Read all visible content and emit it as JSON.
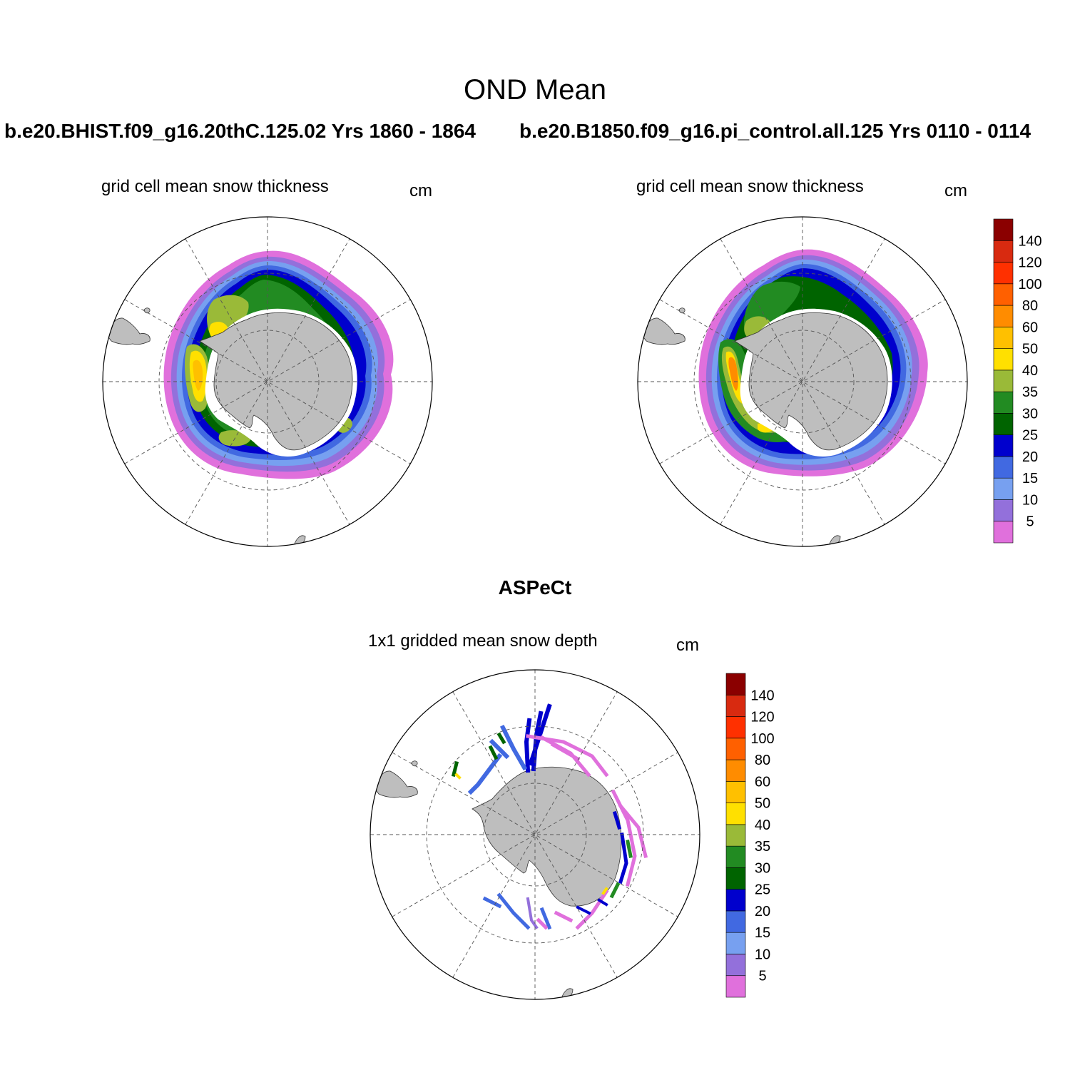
{
  "main_title": "OND Mean",
  "panels": [
    {
      "case_title": "b.e20.BHIST.f09_g16.20thC.125.02  Yrs 1860 - 1864",
      "subtitle": "grid cell mean snow thickness",
      "units": "cm"
    },
    {
      "case_title": "b.e20.B1850.f09_g16.pi_control.all.125  Yrs 0110 - 0114",
      "subtitle": "grid cell mean snow thickness",
      "units": "cm"
    }
  ],
  "observation": {
    "title": "ASPeCt",
    "subtitle": "1x1 gridded mean snow depth",
    "units": "cm"
  },
  "colorbar": {
    "levels": [
      "5",
      "10",
      "15",
      "20",
      "25",
      "30",
      "35",
      "40",
      "50",
      "60",
      "80",
      "100",
      "120",
      "140"
    ],
    "colors": [
      "#e070dc",
      "#9370db",
      "#77a0f0",
      "#4169e1",
      "#0000cd",
      "#006400",
      "#228b22",
      "#9aba38",
      "#ffe000",
      "#ffc000",
      "#ff8c00",
      "#ff6000",
      "#ff3000",
      "#d82a10",
      "#8b0000"
    ]
  },
  "land_color": "#bebebe",
  "map_projection": "south polar stereographic"
}
